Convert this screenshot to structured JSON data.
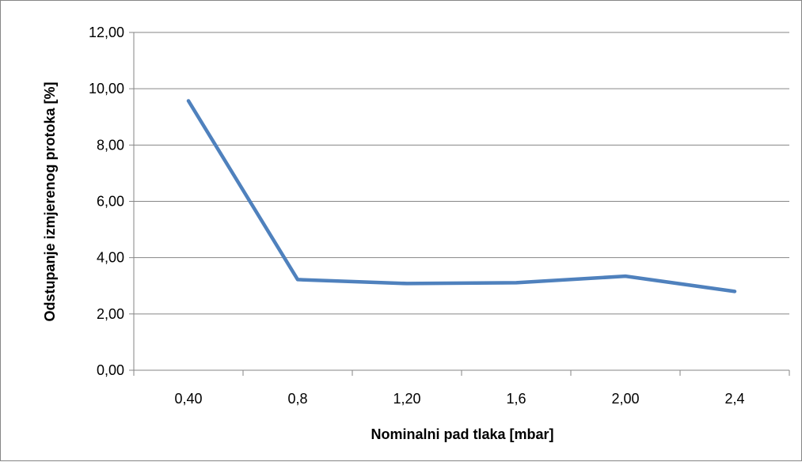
{
  "chart_data": {
    "type": "line",
    "title": "",
    "xlabel": "Nominalni pad tlaka [mbar]",
    "ylabel": "Odstupanje izmjerenog protoka [%]",
    "categories": [
      "0,40",
      "0,8",
      "1,20",
      "1,6",
      "2,00",
      "2,4"
    ],
    "series": [
      {
        "values": [
          9.57,
          3.22,
          3.08,
          3.11,
          3.34,
          2.8
        ],
        "color": "#4F81BD"
      }
    ],
    "ylim": [
      0,
      12
    ],
    "yticks": [
      {
        "value": 0,
        "label": "0,00"
      },
      {
        "value": 2,
        "label": "2,00"
      },
      {
        "value": 4,
        "label": "4,00"
      },
      {
        "value": 6,
        "label": "6,00"
      },
      {
        "value": 8,
        "label": "8,00"
      },
      {
        "value": 10,
        "label": "10,00"
      },
      {
        "value": 12,
        "label": "12,00"
      }
    ],
    "grid": "horizontal",
    "legend": "none"
  }
}
